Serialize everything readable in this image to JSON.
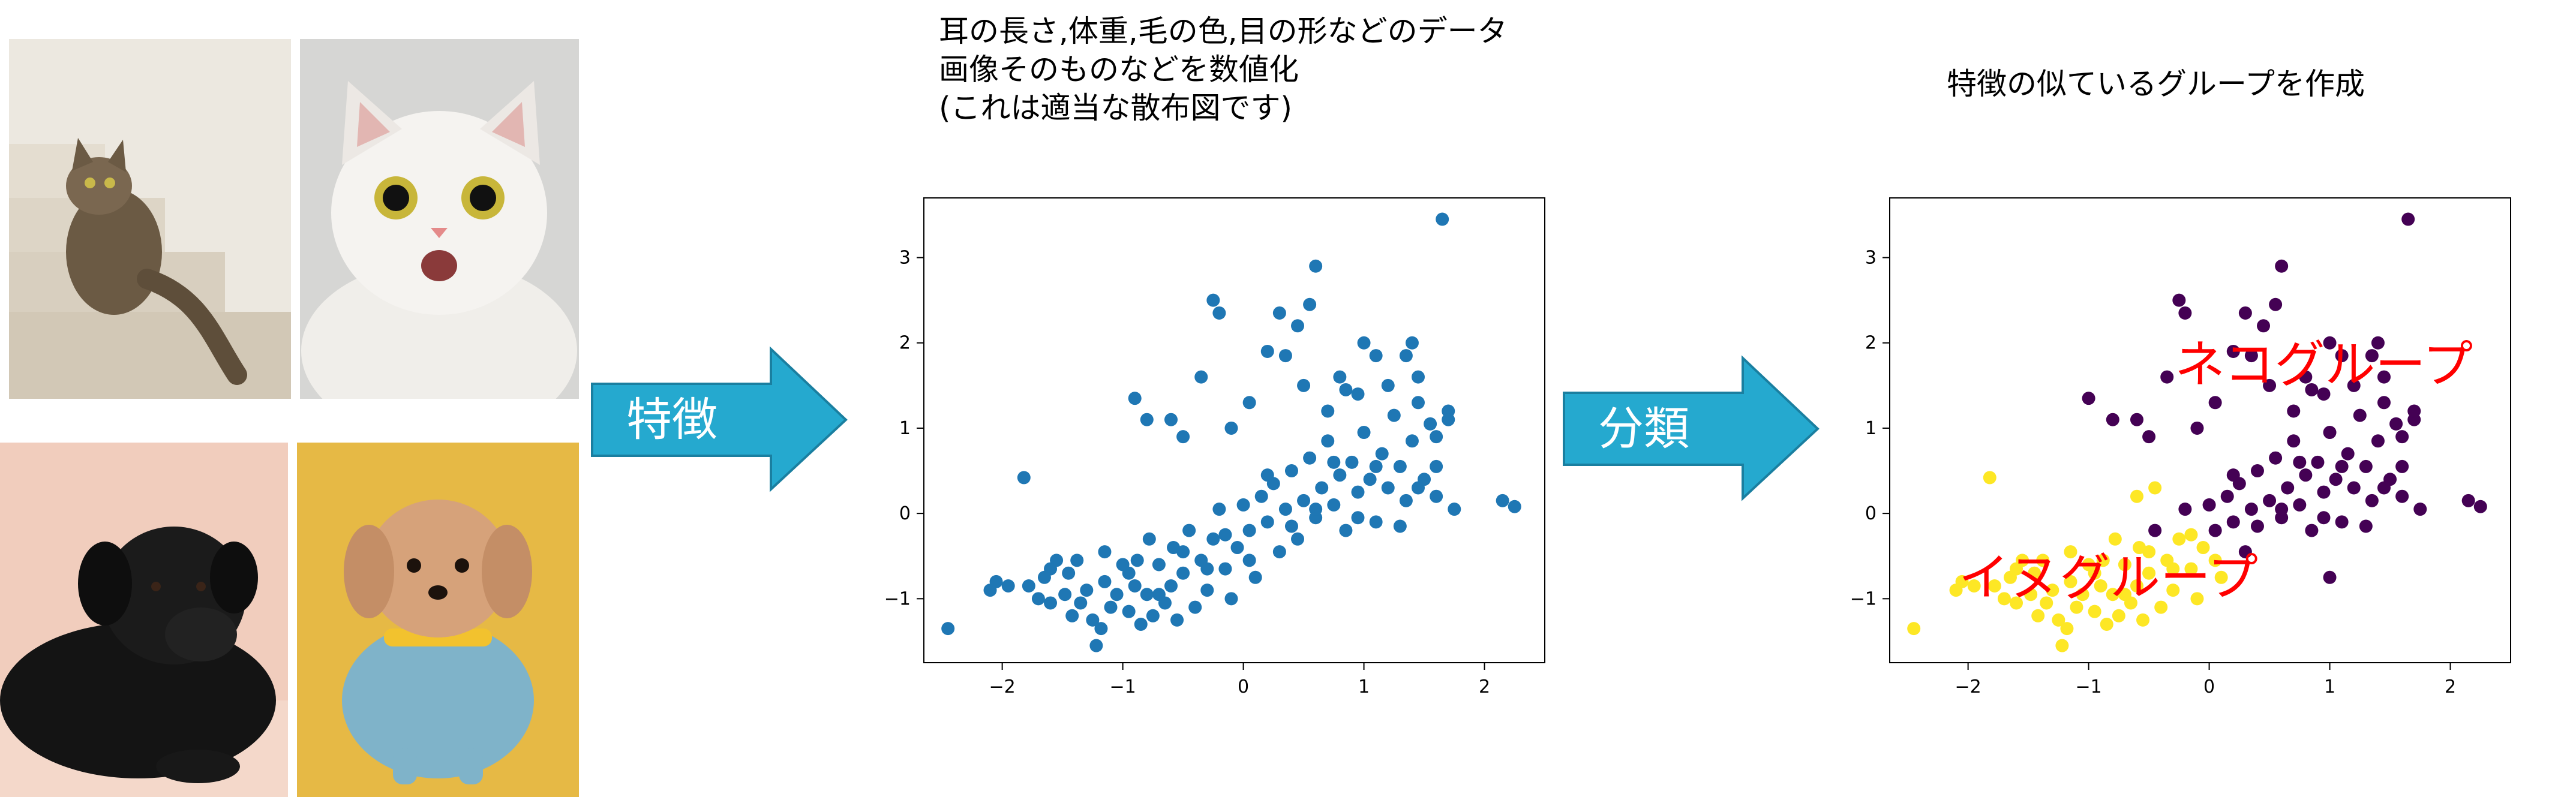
{
  "images": [
    {
      "name": "cat-on-stairs-photo",
      "background": "#ece8e0"
    },
    {
      "name": "surprised-white-cat-photo",
      "background": "#d6d6d4"
    },
    {
      "name": "black-dog-photo",
      "background": "#f1cdbd"
    },
    {
      "name": "dog-in-shirt-photo",
      "background": "#e6b945"
    }
  ],
  "features_arrow": {
    "label": "特徴",
    "color": "#25a9cf",
    "border": "#1a7fa0"
  },
  "classify_arrow": {
    "label": "分類",
    "color": "#25a9cf",
    "border": "#1a7fa0"
  },
  "middle_caption": {
    "lines": [
      "耳の長さ,体重,毛の色,目の形などのデータ",
      "画像そのものなどを数値化",
      "(これは適当な散布図です)"
    ]
  },
  "right_caption": {
    "text": "特徴の似ているグループを作成"
  },
  "cluster_labels": {
    "cat_group": "ネコグループ",
    "dog_group": "イヌグループ"
  },
  "chart_data": [
    {
      "type": "scatter",
      "title": "",
      "xlabel": "",
      "ylabel": "",
      "xlim": [
        -2.65,
        2.5
      ],
      "ylim": [
        -1.75,
        3.7
      ],
      "x_ticks": [
        -2,
        -1,
        0,
        1,
        2
      ],
      "y_ticks": [
        -1,
        0,
        1,
        2,
        3
      ],
      "grid": false,
      "color": "#1f77b4",
      "series": [
        {
          "points": [
            [
              -2.45,
              -1.35
            ],
            [
              -2.1,
              -0.9
            ],
            [
              -2.05,
              -0.8
            ],
            [
              -1.95,
              -0.85
            ],
            [
              -1.82,
              0.42
            ],
            [
              -1.78,
              -0.85
            ],
            [
              -1.7,
              -1.0
            ],
            [
              -1.65,
              -0.75
            ],
            [
              -1.6,
              -1.05
            ],
            [
              -1.55,
              -0.55
            ],
            [
              -1.48,
              -0.95
            ],
            [
              -1.45,
              -0.7
            ],
            [
              -1.42,
              -1.2
            ],
            [
              -1.38,
              -0.55
            ],
            [
              -1.3,
              -0.9
            ],
            [
              -1.25,
              -1.25
            ],
            [
              -1.22,
              -1.55
            ],
            [
              -1.18,
              -1.35
            ],
            [
              -1.15,
              -0.8
            ],
            [
              -1.1,
              -1.1
            ],
            [
              -1.05,
              -0.95
            ],
            [
              -1.0,
              -0.6
            ],
            [
              -0.95,
              -1.15
            ],
            [
              -0.9,
              -0.85
            ],
            [
              -0.88,
              -0.55
            ],
            [
              -0.85,
              -1.3
            ],
            [
              -0.8,
              -0.95
            ],
            [
              -0.78,
              -0.3
            ],
            [
              -0.75,
              -1.2
            ],
            [
              -0.7,
              -0.6
            ],
            [
              -0.65,
              -1.05
            ],
            [
              -0.6,
              -0.85
            ],
            [
              -0.58,
              -0.4
            ],
            [
              -0.55,
              -1.25
            ],
            [
              -0.5,
              -0.7
            ],
            [
              -0.45,
              -0.2
            ],
            [
              -0.4,
              -1.1
            ],
            [
              -0.35,
              -0.55
            ],
            [
              -0.3,
              -0.9
            ],
            [
              -0.25,
              -0.3
            ],
            [
              -0.2,
              0.05
            ],
            [
              -0.15,
              -0.65
            ],
            [
              -0.1,
              -1.0
            ],
            [
              -0.05,
              -0.4
            ],
            [
              0.0,
              0.1
            ],
            [
              0.05,
              -0.2
            ],
            [
              0.1,
              -0.75
            ],
            [
              0.15,
              0.2
            ],
            [
              0.2,
              -0.1
            ],
            [
              0.25,
              0.35
            ],
            [
              0.3,
              -0.45
            ],
            [
              0.35,
              0.05
            ],
            [
              0.4,
              0.5
            ],
            [
              0.45,
              -0.3
            ],
            [
              0.5,
              0.15
            ],
            [
              0.55,
              0.65
            ],
            [
              0.6,
              -0.05
            ],
            [
              0.65,
              0.3
            ],
            [
              0.7,
              0.85
            ],
            [
              0.75,
              0.1
            ],
            [
              0.8,
              0.45
            ],
            [
              0.85,
              -0.2
            ],
            [
              0.9,
              0.6
            ],
            [
              0.95,
              0.25
            ],
            [
              1.0,
              0.95
            ],
            [
              1.05,
              0.4
            ],
            [
              1.1,
              -0.1
            ],
            [
              1.15,
              0.7
            ],
            [
              1.2,
              0.3
            ],
            [
              1.25,
              1.15
            ],
            [
              1.3,
              0.55
            ],
            [
              1.35,
              0.15
            ],
            [
              1.4,
              0.85
            ],
            [
              1.45,
              1.6
            ],
            [
              1.5,
              0.4
            ],
            [
              1.55,
              1.05
            ],
            [
              1.6,
              0.2
            ],
            [
              1.65,
              3.45
            ],
            [
              1.7,
              1.2
            ],
            [
              1.75,
              0.05
            ],
            [
              2.15,
              0.15
            ],
            [
              2.25,
              0.08
            ],
            [
              -1.6,
              -0.65
            ],
            [
              -1.35,
              -1.05
            ],
            [
              -1.15,
              -0.45
            ],
            [
              -0.95,
              -0.7
            ],
            [
              -0.7,
              -0.95
            ],
            [
              -0.5,
              -0.45
            ],
            [
              -0.3,
              -0.65
            ],
            [
              -0.15,
              -0.25
            ],
            [
              0.05,
              -0.55
            ],
            [
              0.2,
              0.45
            ],
            [
              0.4,
              -0.15
            ],
            [
              0.6,
              0.05
            ],
            [
              0.75,
              0.6
            ],
            [
              0.95,
              -0.05
            ],
            [
              1.1,
              0.55
            ],
            [
              1.3,
              -0.15
            ],
            [
              1.45,
              0.3
            ],
            [
              1.6,
              0.9
            ],
            [
              -0.9,
              1.35
            ],
            [
              -0.8,
              1.1
            ],
            [
              -0.6,
              1.1
            ],
            [
              -0.5,
              0.9
            ],
            [
              -0.35,
              1.6
            ],
            [
              -0.25,
              2.5
            ],
            [
              -0.2,
              2.35
            ],
            [
              -0.1,
              1.0
            ],
            [
              0.05,
              1.3
            ],
            [
              0.2,
              1.9
            ],
            [
              0.3,
              2.35
            ],
            [
              0.35,
              1.85
            ],
            [
              0.45,
              2.2
            ],
            [
              0.5,
              1.5
            ],
            [
              0.55,
              2.45
            ],
            [
              0.6,
              2.9
            ],
            [
              0.7,
              1.2
            ],
            [
              0.8,
              1.6
            ],
            [
              0.85,
              1.45
            ],
            [
              0.95,
              1.4
            ],
            [
              1.0,
              2.0
            ],
            [
              1.1,
              1.85
            ],
            [
              1.2,
              1.5
            ],
            [
              1.35,
              1.85
            ],
            [
              1.4,
              2.0
            ],
            [
              1.45,
              1.3
            ],
            [
              1.6,
              0.55
            ],
            [
              1.7,
              1.1
            ]
          ]
        }
      ]
    },
    {
      "type": "scatter",
      "title": "",
      "xlabel": "",
      "ylabel": "",
      "xlim": [
        -2.65,
        2.5
      ],
      "ylim": [
        -1.75,
        3.7
      ],
      "x_ticks": [
        -2,
        -1,
        0,
        1,
        2
      ],
      "y_ticks": [
        -1,
        0,
        1,
        2,
        3
      ],
      "grid": false,
      "series": [
        {
          "color": "#440154",
          "points": [
            [
              -1.0,
              1.35
            ],
            [
              -0.8,
              1.1
            ],
            [
              -0.6,
              1.1
            ],
            [
              -0.5,
              0.9
            ],
            [
              -0.35,
              1.6
            ],
            [
              -0.25,
              2.5
            ],
            [
              -0.2,
              2.35
            ],
            [
              -0.1,
              1.0
            ],
            [
              0.05,
              1.3
            ],
            [
              0.2,
              1.9
            ],
            [
              0.3,
              2.35
            ],
            [
              0.35,
              1.85
            ],
            [
              0.45,
              2.2
            ],
            [
              0.5,
              1.5
            ],
            [
              0.55,
              2.45
            ],
            [
              0.6,
              2.9
            ],
            [
              0.7,
              1.2
            ],
            [
              0.8,
              1.6
            ],
            [
              0.85,
              1.45
            ],
            [
              0.95,
              1.4
            ],
            [
              1.0,
              2.0
            ],
            [
              1.1,
              1.85
            ],
            [
              1.2,
              1.5
            ],
            [
              1.35,
              1.85
            ],
            [
              1.4,
              2.0
            ],
            [
              1.45,
              1.3
            ],
            [
              1.6,
              0.55
            ],
            [
              1.7,
              1.1
            ],
            [
              1.65,
              3.45
            ],
            [
              1.7,
              1.2
            ],
            [
              2.15,
              0.15
            ],
            [
              2.25,
              0.08
            ],
            [
              -0.45,
              -0.2
            ],
            [
              -0.2,
              0.05
            ],
            [
              0.0,
              0.1
            ],
            [
              0.05,
              -0.2
            ],
            [
              0.15,
              0.2
            ],
            [
              0.2,
              -0.1
            ],
            [
              0.25,
              0.35
            ],
            [
              0.35,
              0.05
            ],
            [
              0.4,
              0.5
            ],
            [
              0.5,
              0.15
            ],
            [
              0.55,
              0.65
            ],
            [
              0.6,
              -0.05
            ],
            [
              0.65,
              0.3
            ],
            [
              0.7,
              0.85
            ],
            [
              0.75,
              0.1
            ],
            [
              0.8,
              0.45
            ],
            [
              0.9,
              0.6
            ],
            [
              0.95,
              0.25
            ],
            [
              1.0,
              0.95
            ],
            [
              1.05,
              0.4
            ],
            [
              1.1,
              -0.1
            ],
            [
              1.15,
              0.7
            ],
            [
              1.2,
              0.3
            ],
            [
              1.25,
              1.15
            ],
            [
              1.3,
              0.55
            ],
            [
              1.35,
              0.15
            ],
            [
              1.4,
              0.85
            ],
            [
              1.45,
              1.6
            ],
            [
              1.5,
              0.4
            ],
            [
              1.55,
              1.05
            ],
            [
              1.6,
              0.2
            ],
            [
              1.75,
              0.05
            ],
            [
              0.2,
              0.45
            ],
            [
              0.4,
              -0.15
            ],
            [
              0.6,
              0.05
            ],
            [
              0.75,
              0.6
            ],
            [
              0.95,
              -0.05
            ],
            [
              1.1,
              0.55
            ],
            [
              1.3,
              -0.15
            ],
            [
              1.45,
              0.3
            ],
            [
              1.6,
              0.9
            ],
            [
              0.85,
              -0.2
            ],
            [
              0.3,
              -0.45
            ],
            [
              1.0,
              -0.75
            ]
          ]
        },
        {
          "color": "#fde725",
          "points": [
            [
              -2.45,
              -1.35
            ],
            [
              -2.1,
              -0.9
            ],
            [
              -2.05,
              -0.8
            ],
            [
              -1.95,
              -0.85
            ],
            [
              -1.82,
              0.42
            ],
            [
              -1.78,
              -0.85
            ],
            [
              -1.7,
              -1.0
            ],
            [
              -1.65,
              -0.75
            ],
            [
              -1.6,
              -1.05
            ],
            [
              -1.55,
              -0.55
            ],
            [
              -1.48,
              -0.95
            ],
            [
              -1.45,
              -0.7
            ],
            [
              -1.42,
              -1.2
            ],
            [
              -1.38,
              -0.55
            ],
            [
              -1.3,
              -0.9
            ],
            [
              -1.25,
              -1.25
            ],
            [
              -1.22,
              -1.55
            ],
            [
              -1.18,
              -1.35
            ],
            [
              -1.15,
              -0.8
            ],
            [
              -1.1,
              -1.1
            ],
            [
              -1.05,
              -0.95
            ],
            [
              -1.0,
              -0.6
            ],
            [
              -0.95,
              -1.15
            ],
            [
              -0.9,
              -0.85
            ],
            [
              -0.88,
              -0.55
            ],
            [
              -0.85,
              -1.3
            ],
            [
              -0.8,
              -0.95
            ],
            [
              -0.78,
              -0.3
            ],
            [
              -0.75,
              -1.2
            ],
            [
              -0.7,
              -0.6
            ],
            [
              -0.65,
              -1.05
            ],
            [
              -0.6,
              -0.85
            ],
            [
              -0.58,
              -0.4
            ],
            [
              -0.55,
              -1.25
            ],
            [
              -0.5,
              -0.7
            ],
            [
              -0.4,
              -1.1
            ],
            [
              -0.35,
              -0.55
            ],
            [
              -0.3,
              -0.9
            ],
            [
              -0.25,
              -0.3
            ],
            [
              -0.15,
              -0.65
            ],
            [
              -0.1,
              -1.0
            ],
            [
              -0.05,
              -0.4
            ],
            [
              0.1,
              -0.75
            ],
            [
              -1.6,
              -0.65
            ],
            [
              -1.35,
              -1.05
            ],
            [
              -1.15,
              -0.45
            ],
            [
              -0.95,
              -0.7
            ],
            [
              -0.7,
              -0.95
            ],
            [
              -0.5,
              -0.45
            ],
            [
              -0.3,
              -0.65
            ],
            [
              -0.15,
              -0.25
            ],
            [
              0.05,
              -0.55
            ],
            [
              -0.45,
              0.3
            ],
            [
              -0.6,
              0.2
            ]
          ]
        }
      ]
    }
  ]
}
